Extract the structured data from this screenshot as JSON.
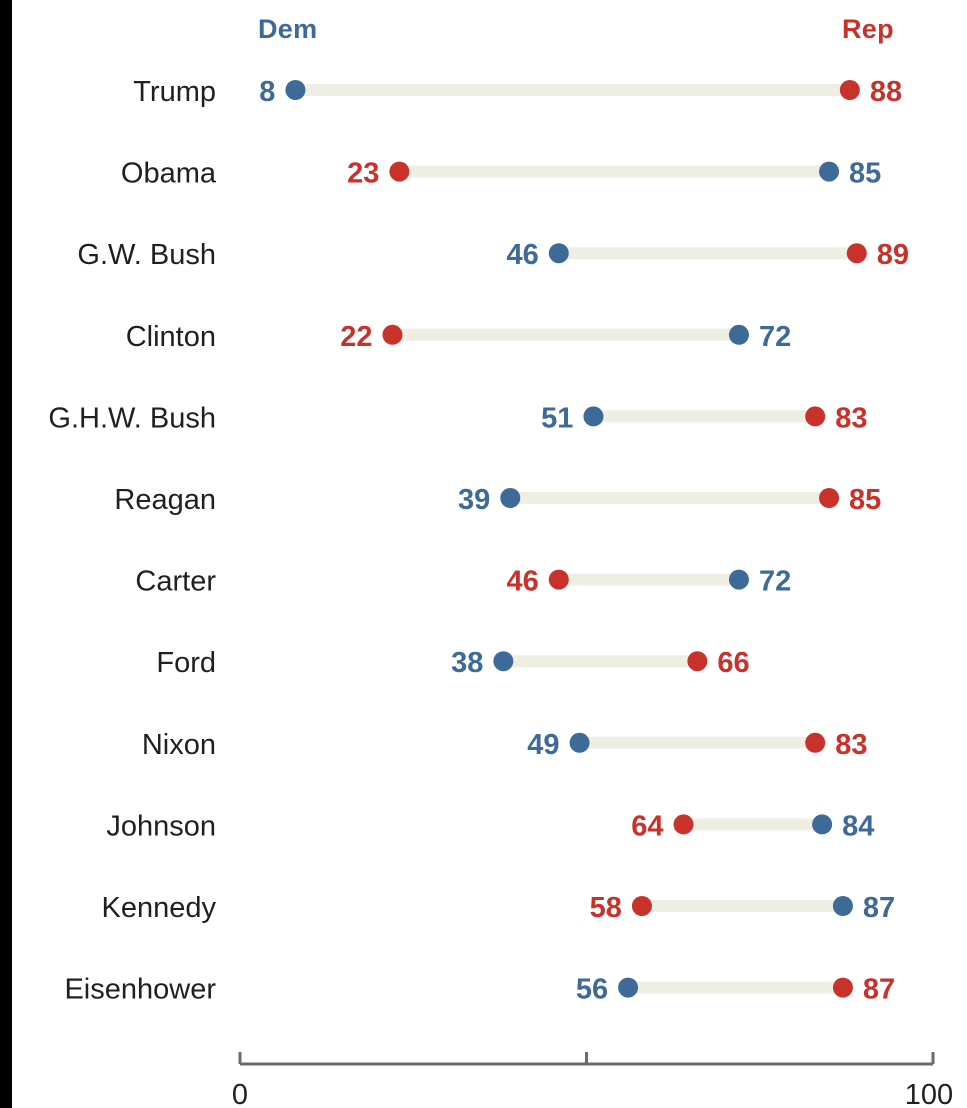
{
  "colors": {
    "dem": "#3d6a97",
    "rep": "#c8322a",
    "track": "#efeee3",
    "axis": "#6b6b6b",
    "label": "#1f1f1f",
    "background": "#ffffff"
  },
  "chart_data": {
    "type": "dumbbell",
    "legend": {
      "dem": "Dem",
      "rep": "Rep"
    },
    "categories": [
      "Trump",
      "Obama",
      "G.W. Bush",
      "Clinton",
      "G.H.W. Bush",
      "Reagan",
      "Carter",
      "Ford",
      "Nixon",
      "Johnson",
      "Kennedy",
      "Eisenhower"
    ],
    "series": [
      {
        "name": "Dem",
        "values": [
          8,
          85,
          46,
          72,
          51,
          39,
          72,
          38,
          49,
          84,
          87,
          56
        ]
      },
      {
        "name": "Rep",
        "values": [
          88,
          23,
          89,
          22,
          83,
          85,
          46,
          66,
          83,
          64,
          58,
          87
        ]
      }
    ],
    "xlim": [
      0,
      100
    ],
    "x_tick_labels": [
      "0",
      "100"
    ],
    "x_ticks": [
      0,
      50,
      100
    ],
    "legend_placement": "top",
    "grid": false
  }
}
